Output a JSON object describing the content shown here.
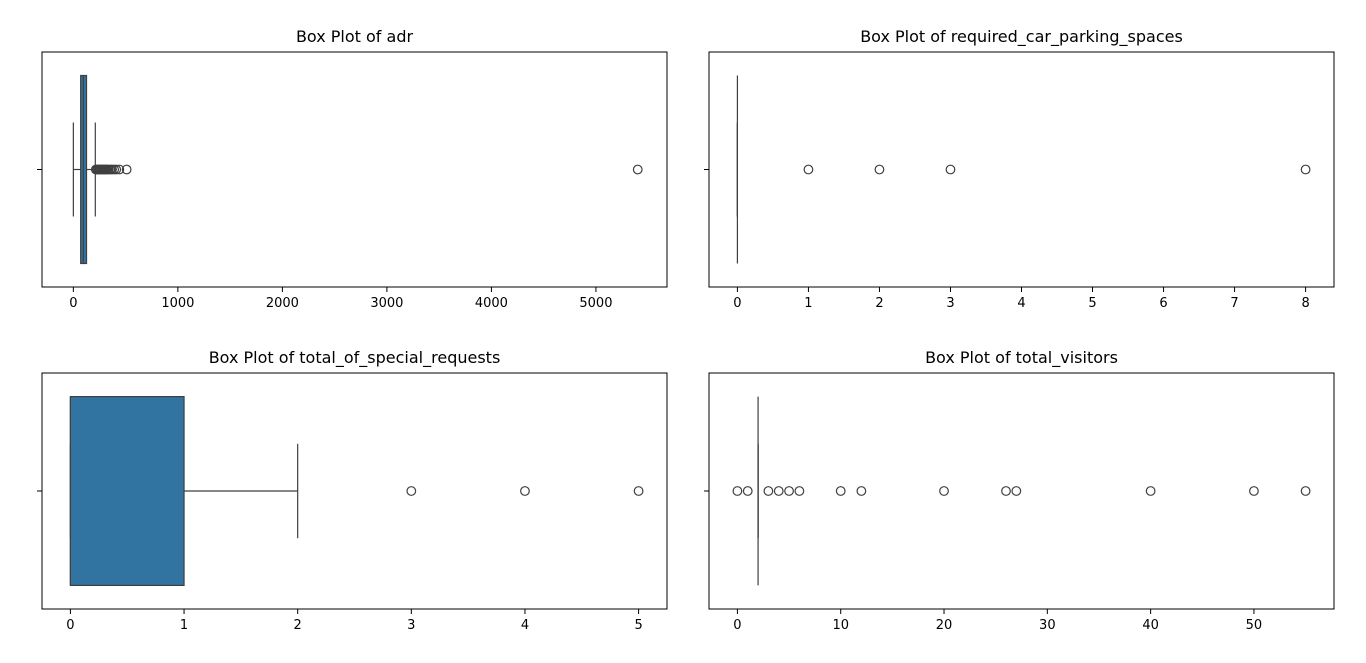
{
  "chart_data": [
    {
      "type": "box",
      "title": "Box Plot of adr",
      "xlim": [
        -300,
        5680
      ],
      "xticks": [
        0,
        1000,
        2000,
        3000,
        4000,
        5000
      ],
      "box": {
        "whisker_low": 0,
        "q1": 70,
        "median": 95,
        "q3": 126,
        "whisker_high": 210
      },
      "outliers": [
        215,
        225,
        235,
        245,
        255,
        265,
        275,
        285,
        295,
        305,
        315,
        325,
        340,
        355,
        370,
        390,
        410,
        440,
        510,
        5400
      ]
    },
    {
      "type": "box",
      "title": "Box Plot of required_car_parking_spaces",
      "xlim": [
        -0.4,
        8.4
      ],
      "xticks": [
        0,
        1,
        2,
        3,
        4,
        5,
        6,
        7,
        8
      ],
      "box": {
        "whisker_low": 0,
        "q1": 0,
        "median": 0,
        "q3": 0,
        "whisker_high": 0
      },
      "outliers": [
        1,
        2,
        3,
        8
      ]
    },
    {
      "type": "box",
      "title": "Box Plot of total_of_special_requests",
      "xlim": [
        -0.25,
        5.25
      ],
      "xticks": [
        0,
        1,
        2,
        3,
        4,
        5
      ],
      "box": {
        "whisker_low": 0,
        "q1": 0,
        "median": 0,
        "q3": 1,
        "whisker_high": 2
      },
      "outliers": [
        3,
        4,
        5
      ]
    },
    {
      "type": "box",
      "title": "Box Plot of total_visitors",
      "xlim": [
        -2.75,
        57.75
      ],
      "xticks": [
        0,
        10,
        20,
        30,
        40,
        50
      ],
      "box": {
        "whisker_low": 2,
        "q1": 2,
        "median": 2,
        "q3": 2,
        "whisker_high": 2
      },
      "outliers": [
        0,
        1,
        3,
        4,
        5,
        6,
        10,
        12,
        20,
        26,
        27,
        40,
        50,
        55
      ]
    }
  ],
  "colors": {
    "box_fill": "#3274a1",
    "line": "#3f3f3f",
    "axis": "#000000"
  }
}
